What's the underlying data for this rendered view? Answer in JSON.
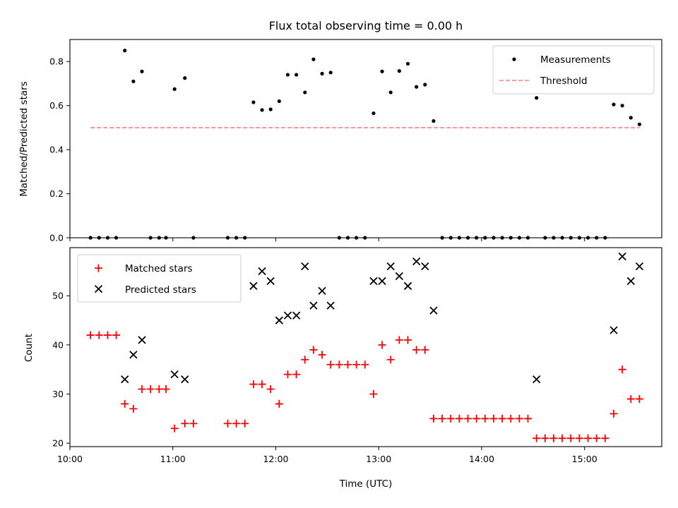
{
  "chart_data": [
    {
      "type": "scatter",
      "title": "Flux total observing time = 0.00 h",
      "xlabel": "",
      "ylabel": "Matched/Predicted stars",
      "xlim": [
        "10:00",
        "15:45"
      ],
      "ylim": [
        0,
        0.9
      ],
      "yticks": [
        0.0,
        0.2,
        0.4,
        0.6,
        0.8
      ],
      "ytick_labels": [
        "0.0",
        "0.2",
        "0.4",
        "0.6",
        "0.8"
      ],
      "legend_position": "top-right",
      "grid": false,
      "series": [
        {
          "name": "Measurements",
          "marker": "dot",
          "color": "#000000",
          "points": [
            [
              "10:12",
              0.0
            ],
            [
              "10:17",
              0.0
            ],
            [
              "10:22",
              0.0
            ],
            [
              "10:27",
              0.0
            ],
            [
              "10:32",
              0.85
            ],
            [
              "10:37",
              0.71
            ],
            [
              "10:42",
              0.755
            ],
            [
              "10:47",
              0.0
            ],
            [
              "10:52",
              0.0
            ],
            [
              "10:56",
              0.0
            ],
            [
              "11:01",
              0.675
            ],
            [
              "11:07",
              0.725
            ],
            [
              "11:12",
              0.0
            ],
            [
              "11:32",
              0.0
            ],
            [
              "11:37",
              0.0
            ],
            [
              "11:42",
              0.0
            ],
            [
              "11:47",
              0.615
            ],
            [
              "11:52",
              0.58
            ],
            [
              "11:57",
              0.583
            ],
            [
              "12:02",
              0.62
            ],
            [
              "12:07",
              0.74
            ],
            [
              "12:12",
              0.74
            ],
            [
              "12:17",
              0.66
            ],
            [
              "12:22",
              0.81
            ],
            [
              "12:27",
              0.745
            ],
            [
              "12:32",
              0.75
            ],
            [
              "12:37",
              0.0
            ],
            [
              "12:42",
              0.0
            ],
            [
              "12:47",
              0.0
            ],
            [
              "12:52",
              0.0
            ],
            [
              "12:57",
              0.565
            ],
            [
              "13:02",
              0.755
            ],
            [
              "13:07",
              0.66
            ],
            [
              "13:12",
              0.757
            ],
            [
              "13:17",
              0.79
            ],
            [
              "13:22",
              0.685
            ],
            [
              "13:27",
              0.695
            ],
            [
              "13:32",
              0.53
            ],
            [
              "13:37",
              0.0
            ],
            [
              "13:42",
              0.0
            ],
            [
              "13:47",
              0.0
            ],
            [
              "13:52",
              0.0
            ],
            [
              "13:57",
              0.0
            ],
            [
              "14:02",
              0.0
            ],
            [
              "14:07",
              0.0
            ],
            [
              "14:12",
              0.0
            ],
            [
              "14:17",
              0.0
            ],
            [
              "14:22",
              0.0
            ],
            [
              "14:27",
              0.0
            ],
            [
              "14:32",
              0.635
            ],
            [
              "14:37",
              0.0
            ],
            [
              "14:42",
              0.0
            ],
            [
              "14:47",
              0.0
            ],
            [
              "14:52",
              0.0
            ],
            [
              "14:57",
              0.0
            ],
            [
              "15:02",
              0.0
            ],
            [
              "15:07",
              0.0
            ],
            [
              "15:12",
              0.0
            ],
            [
              "15:17",
              0.605
            ],
            [
              "15:22",
              0.6
            ],
            [
              "15:27",
              0.545
            ],
            [
              "15:32",
              0.515
            ]
          ]
        },
        {
          "name": "Threshold",
          "line_style": "dashed",
          "color": "#ff7f7f",
          "points": [
            [
              "10:12",
              0.5
            ],
            [
              "15:32",
              0.5
            ]
          ]
        }
      ]
    },
    {
      "type": "scatter",
      "title": "",
      "xlabel": "Time (UTC)",
      "ylabel": "Count",
      "xlim": [
        "10:00",
        "15:45"
      ],
      "ylim": [
        19.3,
        59.8
      ],
      "yticks": [
        20,
        30,
        40,
        50
      ],
      "ytick_labels": [
        "20",
        "30",
        "40",
        "50"
      ],
      "xticks": [
        "10:00",
        "11:00",
        "12:00",
        "13:00",
        "14:00",
        "15:00"
      ],
      "xtick_labels": [
        "10:00",
        "11:00",
        "12:00",
        "13:00",
        "14:00",
        "15:00"
      ],
      "legend_position": "top-left",
      "grid": false,
      "series": [
        {
          "name": "Matched stars",
          "marker": "plus",
          "color": "#ff0000",
          "points": [
            [
              "10:12",
              42
            ],
            [
              "10:17",
              42
            ],
            [
              "10:22",
              42
            ],
            [
              "10:27",
              42
            ],
            [
              "10:32",
              28
            ],
            [
              "10:37",
              27
            ],
            [
              "10:42",
              31
            ],
            [
              "10:47",
              31
            ],
            [
              "10:52",
              31
            ],
            [
              "10:56",
              31
            ],
            [
              "11:01",
              23
            ],
            [
              "11:07",
              24
            ],
            [
              "11:12",
              24
            ],
            [
              "11:32",
              24
            ],
            [
              "11:37",
              24
            ],
            [
              "11:42",
              24
            ],
            [
              "11:47",
              32
            ],
            [
              "11:52",
              32
            ],
            [
              "11:57",
              31
            ],
            [
              "12:02",
              28
            ],
            [
              "12:07",
              34
            ],
            [
              "12:12",
              34
            ],
            [
              "12:17",
              37
            ],
            [
              "12:22",
              39
            ],
            [
              "12:27",
              38
            ],
            [
              "12:32",
              36
            ],
            [
              "12:37",
              36
            ],
            [
              "12:42",
              36
            ],
            [
              "12:47",
              36
            ],
            [
              "12:52",
              36
            ],
            [
              "12:57",
              30
            ],
            [
              "13:02",
              40
            ],
            [
              "13:07",
              37
            ],
            [
              "13:12",
              41
            ],
            [
              "13:17",
              41
            ],
            [
              "13:22",
              39
            ],
            [
              "13:27",
              39
            ],
            [
              "13:32",
              25
            ],
            [
              "13:37",
              25
            ],
            [
              "13:42",
              25
            ],
            [
              "13:47",
              25
            ],
            [
              "13:52",
              25
            ],
            [
              "13:57",
              25
            ],
            [
              "14:02",
              25
            ],
            [
              "14:07",
              25
            ],
            [
              "14:12",
              25
            ],
            [
              "14:17",
              25
            ],
            [
              "14:22",
              25
            ],
            [
              "14:27",
              25
            ],
            [
              "14:32",
              21
            ],
            [
              "14:37",
              21
            ],
            [
              "14:42",
              21
            ],
            [
              "14:47",
              21
            ],
            [
              "14:52",
              21
            ],
            [
              "14:57",
              21
            ],
            [
              "15:02",
              21
            ],
            [
              "15:07",
              21
            ],
            [
              "15:12",
              21
            ],
            [
              "15:17",
              26
            ],
            [
              "15:22",
              35
            ],
            [
              "15:27",
              29
            ],
            [
              "15:32",
              29
            ]
          ]
        },
        {
          "name": "Predicted stars",
          "marker": "x",
          "color": "#000000",
          "points": [
            [
              "10:32",
              33
            ],
            [
              "10:37",
              38
            ],
            [
              "10:42",
              41
            ],
            [
              "11:01",
              34
            ],
            [
              "11:07",
              33
            ],
            [
              "11:47",
              52
            ],
            [
              "11:52",
              55
            ],
            [
              "11:57",
              53
            ],
            [
              "12:02",
              45
            ],
            [
              "12:07",
              46
            ],
            [
              "12:12",
              46
            ],
            [
              "12:17",
              56
            ],
            [
              "12:22",
              48
            ],
            [
              "12:27",
              51
            ],
            [
              "12:32",
              48
            ],
            [
              "12:57",
              53
            ],
            [
              "13:02",
              53
            ],
            [
              "13:07",
              56
            ],
            [
              "13:12",
              54
            ],
            [
              "13:17",
              52
            ],
            [
              "13:22",
              57
            ],
            [
              "13:27",
              56
            ],
            [
              "13:32",
              47
            ],
            [
              "14:32",
              33
            ],
            [
              "15:17",
              43
            ],
            [
              "15:22",
              58
            ],
            [
              "15:27",
              53
            ],
            [
              "15:32",
              56
            ]
          ]
        }
      ]
    }
  ]
}
